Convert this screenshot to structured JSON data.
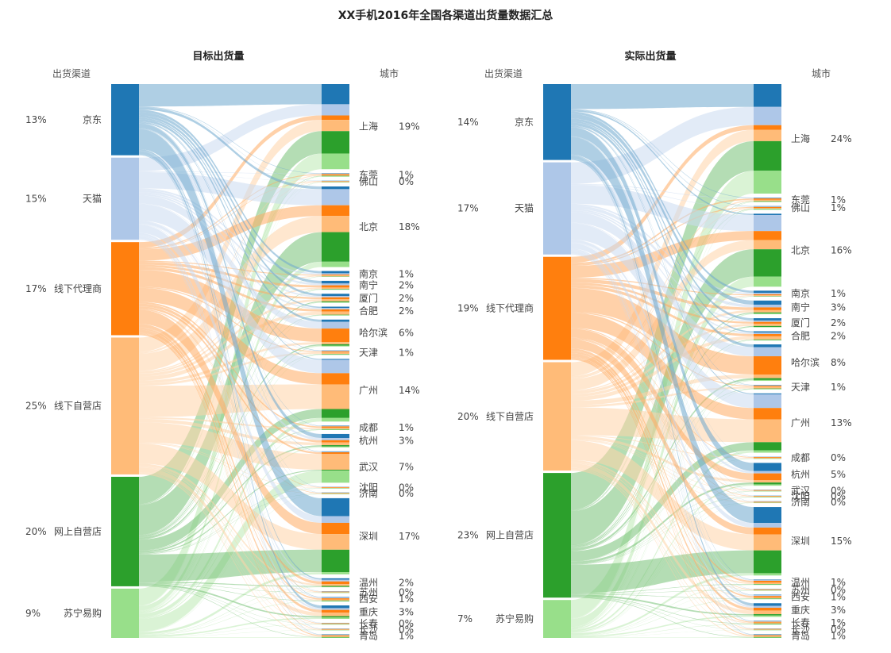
{
  "title": "XX手机2016年全国各渠道出货量数据汇总",
  "colors": {
    "京东": "#1f77b4",
    "天猫": "#aec7e8",
    "线下代理商": "#ff7f0e",
    "线下自营店": "#ffbb78",
    "网上自营店": "#2ca02c",
    "苏宁易购": "#98df8a"
  },
  "chart_data": [
    {
      "type": "sankey",
      "title": "目标出货量",
      "source_header": "出货渠道",
      "target_header": "城市",
      "sources": [
        {
          "name": "京东",
          "pct": "13%",
          "value": 13
        },
        {
          "name": "天猫",
          "pct": "15%",
          "value": 15
        },
        {
          "name": "线下代理商",
          "pct": "17%",
          "value": 17
        },
        {
          "name": "线下自营店",
          "pct": "25%",
          "value": 25
        },
        {
          "name": "网上自营店",
          "pct": "20%",
          "value": 20
        },
        {
          "name": "苏宁易购",
          "pct": "9%",
          "value": 9
        }
      ],
      "targets": [
        {
          "name": "上海",
          "pct": "19%",
          "value": 19,
          "split": [
            4.5,
            2.5,
            1,
            2.5,
            5,
            3.5
          ]
        },
        {
          "name": "东莞",
          "pct": "1%",
          "value": 0.8,
          "split": [
            0.1,
            0.1,
            0.2,
            0.2,
            0.1,
            0.1
          ]
        },
        {
          "name": "佛山",
          "pct": "0%",
          "value": 0.4,
          "split": [
            0.05,
            0.05,
            0.1,
            0.1,
            0.05,
            0.05
          ]
        },
        {
          "name": "北京",
          "pct": "18%",
          "value": 18,
          "split": [
            0.5,
            3,
            2,
            3,
            5.5,
            1
          ]
        },
        {
          "name": "南京",
          "pct": "1%",
          "value": 1.3,
          "split": [
            0.5,
            0.3,
            0.2,
            0.2,
            0.05,
            0.05
          ]
        },
        {
          "name": "南宁",
          "pct": "2%",
          "value": 2,
          "split": [
            0.6,
            0.4,
            0.5,
            0.3,
            0.1,
            0.1
          ]
        },
        {
          "name": "厦门",
          "pct": "2%",
          "value": 2,
          "split": [
            0.5,
            0.3,
            0.4,
            0.5,
            0.2,
            0.1
          ]
        },
        {
          "name": "合肥",
          "pct": "2%",
          "value": 2,
          "split": [
            0.3,
            0.3,
            0.5,
            0.7,
            0.1,
            0.1
          ]
        },
        {
          "name": "哈尔滨",
          "pct": "6%",
          "value": 6,
          "split": [
            0.5,
            1.5,
            3,
            0.5,
            0.3,
            0.2
          ]
        },
        {
          "name": "天津",
          "pct": "1%",
          "value": 1,
          "split": [
            0.1,
            0.1,
            0.2,
            0.4,
            0.1,
            0.1
          ]
        },
        {
          "name": "广州",
          "pct": "14%",
          "value": 14,
          "split": [
            0.2,
            3,
            2.5,
            5.5,
            2,
            0.8
          ]
        },
        {
          "name": "成都",
          "pct": "1%",
          "value": 1,
          "split": [
            0.1,
            0.1,
            0.3,
            0.3,
            0.1,
            0.1
          ]
        },
        {
          "name": "杭州",
          "pct": "3%",
          "value": 3,
          "split": [
            0.9,
            0.5,
            0.5,
            0.6,
            0.3,
            0.2
          ]
        },
        {
          "name": "武汉",
          "pct": "7%",
          "value": 7,
          "split": [
            0.1,
            0.1,
            0.4,
            3.5,
            0.2,
            2.7
          ]
        },
        {
          "name": "沈阳",
          "pct": "0%",
          "value": 0.4,
          "split": [
            0.05,
            0.05,
            0.1,
            0.1,
            0.05,
            0.05
          ]
        },
        {
          "name": "济南",
          "pct": "0%",
          "value": 0.4,
          "split": [
            0.05,
            0.05,
            0.1,
            0.1,
            0.05,
            0.05
          ]
        },
        {
          "name": "深圳",
          "pct": "17%",
          "value": 17,
          "split": [
            4,
            1.5,
            2.5,
            3.5,
            5,
            0.5
          ]
        },
        {
          "name": "温州",
          "pct": "2%",
          "value": 2,
          "split": [
            0.3,
            0.4,
            0.6,
            0.4,
            0.2,
            0.1
          ]
        },
        {
          "name": "苏州",
          "pct": "0%",
          "value": 0.4,
          "split": [
            0.05,
            0.05,
            0.1,
            0.1,
            0.05,
            0.05
          ]
        },
        {
          "name": "西安",
          "pct": "1%",
          "value": 1,
          "split": [
            0.1,
            0.2,
            0.3,
            0.2,
            0.1,
            0.1
          ]
        },
        {
          "name": "重庆",
          "pct": "3%",
          "value": 3,
          "split": [
            0.6,
            0.4,
            0.6,
            0.8,
            0.3,
            0.3
          ]
        },
        {
          "name": "长春",
          "pct": "0%",
          "value": 0.4,
          "split": [
            0.05,
            0.05,
            0.1,
            0.1,
            0.05,
            0.05
          ]
        },
        {
          "name": "长沙",
          "pct": "0%",
          "value": 0.4,
          "split": [
            0.05,
            0.05,
            0.1,
            0.1,
            0.05,
            0.05
          ]
        },
        {
          "name": "青岛",
          "pct": "1%",
          "value": 0.8,
          "split": [
            0.1,
            0.1,
            0.2,
            0.2,
            0.1,
            0.1
          ]
        }
      ]
    },
    {
      "type": "sankey",
      "title": "实际出货量",
      "source_header": "出货渠道",
      "target_header": "城市",
      "sources": [
        {
          "name": "京东",
          "pct": "14%",
          "value": 14
        },
        {
          "name": "天猫",
          "pct": "17%",
          "value": 17
        },
        {
          "name": "线下代理商",
          "pct": "19%",
          "value": 19
        },
        {
          "name": "线下自营店",
          "pct": "20%",
          "value": 20
        },
        {
          "name": "网上自营店",
          "pct": "23%",
          "value": 23
        },
        {
          "name": "苏宁易购",
          "pct": "7%",
          "value": 7
        }
      ],
      "targets": [
        {
          "name": "上海",
          "pct": "24%",
          "value": 24,
          "split": [
            5,
            4,
            1,
            2.5,
            6.5,
            5
          ]
        },
        {
          "name": "东莞",
          "pct": "1%",
          "value": 1,
          "split": [
            0.1,
            0.1,
            0.3,
            0.3,
            0.1,
            0.1
          ]
        },
        {
          "name": "佛山",
          "pct": "1%",
          "value": 0.8,
          "split": [
            0.1,
            0.1,
            0.2,
            0.2,
            0.1,
            0.1
          ]
        },
        {
          "name": "北京",
          "pct": "16%",
          "value": 16,
          "split": [
            0.3,
            3.5,
            2,
            2,
            6,
            2.2
          ]
        },
        {
          "name": "南京",
          "pct": "1%",
          "value": 1.3,
          "split": [
            0.5,
            0.3,
            0.2,
            0.2,
            0.05,
            0.05
          ]
        },
        {
          "name": "南宁",
          "pct": "3%",
          "value": 3,
          "split": [
            0.9,
            0.6,
            0.6,
            0.5,
            0.2,
            0.2
          ]
        },
        {
          "name": "厦门",
          "pct": "2%",
          "value": 2,
          "split": [
            0.5,
            0.3,
            0.4,
            0.5,
            0.2,
            0.1
          ]
        },
        {
          "name": "合肥",
          "pct": "2%",
          "value": 2,
          "split": [
            0.3,
            0.3,
            0.5,
            0.7,
            0.1,
            0.1
          ]
        },
        {
          "name": "哈尔滨",
          "pct": "8%",
          "value": 8,
          "split": [
            0.6,
            2,
            4,
            0.8,
            0.4,
            0.2
          ]
        },
        {
          "name": "天津",
          "pct": "1%",
          "value": 1,
          "split": [
            0.1,
            0.1,
            0.2,
            0.4,
            0.1,
            0.1
          ]
        },
        {
          "name": "广州",
          "pct": "13%",
          "value": 13,
          "split": [
            0.2,
            3,
            2.5,
            5,
            1.8,
            0.5
          ]
        },
        {
          "name": "成都",
          "pct": "0%",
          "value": 0.5,
          "split": [
            0.05,
            0.05,
            0.15,
            0.15,
            0.05,
            0.05
          ]
        },
        {
          "name": "杭州",
          "pct": "5%",
          "value": 5,
          "split": [
            1.8,
            0.5,
            1.5,
            0.5,
            0.4,
            0.3
          ]
        },
        {
          "name": "武汉",
          "pct": "0%",
          "value": 0.4,
          "split": [
            0.05,
            0.05,
            0.1,
            0.1,
            0.05,
            0.05
          ]
        },
        {
          "name": "沈阳",
          "pct": "0%",
          "value": 0.4,
          "split": [
            0.05,
            0.05,
            0.1,
            0.1,
            0.05,
            0.05
          ]
        },
        {
          "name": "济南",
          "pct": "0%",
          "value": 0.4,
          "split": [
            0.05,
            0.05,
            0.1,
            0.1,
            0.05,
            0.05
          ]
        },
        {
          "name": "深圳",
          "pct": "15%",
          "value": 15,
          "split": [
            3.5,
            1,
            1.5,
            3.5,
            5,
            0.5
          ]
        },
        {
          "name": "温州",
          "pct": "1%",
          "value": 1.2,
          "split": [
            0.1,
            0.2,
            0.4,
            0.3,
            0.1,
            0.1
          ]
        },
        {
          "name": "苏州",
          "pct": "0%",
          "value": 0.4,
          "split": [
            0.05,
            0.05,
            0.1,
            0.1,
            0.05,
            0.05
          ]
        },
        {
          "name": "西安",
          "pct": "1%",
          "value": 1,
          "split": [
            0.1,
            0.2,
            0.3,
            0.2,
            0.1,
            0.1
          ]
        },
        {
          "name": "重庆",
          "pct": "3%",
          "value": 3,
          "split": [
            0.6,
            0.4,
            0.6,
            0.8,
            0.3,
            0.3
          ]
        },
        {
          "name": "长春",
          "pct": "1%",
          "value": 0.8,
          "split": [
            0.1,
            0.1,
            0.2,
            0.2,
            0.1,
            0.1
          ]
        },
        {
          "name": "长沙",
          "pct": "0%",
          "value": 0.4,
          "split": [
            0.05,
            0.05,
            0.1,
            0.1,
            0.05,
            0.05
          ]
        },
        {
          "name": "青岛",
          "pct": "1%",
          "value": 0.8,
          "split": [
            0.1,
            0.1,
            0.2,
            0.2,
            0.1,
            0.1
          ]
        }
      ]
    }
  ]
}
